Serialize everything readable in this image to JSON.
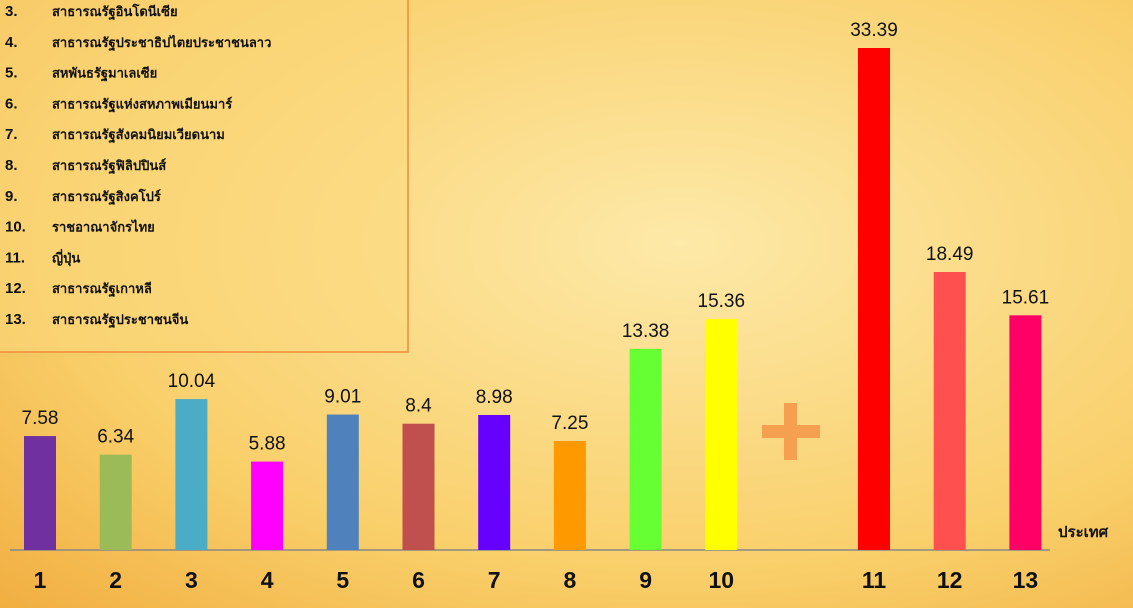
{
  "chart_data": {
    "type": "bar",
    "categories": [
      "1",
      "2",
      "3",
      "4",
      "5",
      "6",
      "7",
      "8",
      "9",
      "10",
      "11",
      "12",
      "13"
    ],
    "values": [
      7.58,
      6.34,
      10.04,
      5.88,
      9.01,
      8.4,
      8.98,
      7.25,
      13.38,
      15.36,
      33.39,
      18.49,
      15.61
    ],
    "colors": [
      "#7030a0",
      "#9bbb59",
      "#4bacc6",
      "#ff00ff",
      "#4f81bd",
      "#c0504d",
      "#6600ff",
      "#ff9900",
      "#66ff33",
      "#ffff00",
      "#ff0000",
      "#ff5050",
      "#ff0066"
    ],
    "x_label": "ประเทศ",
    "legend_items": [
      {
        "number": "3.",
        "name": "สาธารณรัฐอินโดนีเซีย"
      },
      {
        "number": "4.",
        "name": "สาธารณรัฐประชาธิปไตยประชาชนลาว"
      },
      {
        "number": "5.",
        "name": "สหพันธรัฐมาเลเซีย"
      },
      {
        "number": "6.",
        "name": "สาธารณรัฐแห่งสหภาพเมียนมาร์"
      },
      {
        "number": "7.",
        "name": "สาธารณรัฐสังคมนิยมเวียดนาม"
      },
      {
        "number": "8.",
        "name": "สาธารณรัฐฟิลิปปินส์"
      },
      {
        "number": "9.",
        "name": "สาธารณรัฐสิงคโปร์"
      },
      {
        "number": "10.",
        "name": "ราชอาณาจักรไทย"
      },
      {
        "number": "11.",
        "name": "ญี่ปุ่น"
      },
      {
        "number": "12.",
        "name": "สาธารณรัฐเกาหลี"
      },
      {
        "number": "13.",
        "name": "สาธารณรัฐประชาชนจีน"
      }
    ]
  }
}
